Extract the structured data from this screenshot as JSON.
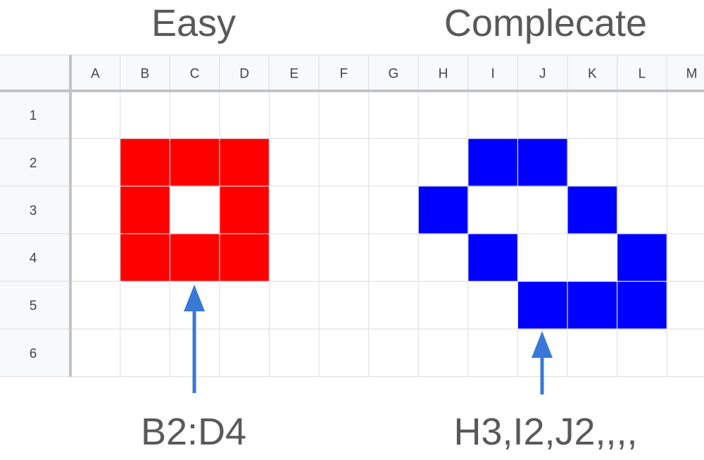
{
  "titles": {
    "left": "Easy",
    "right": "Complecate"
  },
  "captions": {
    "left": "B2:D4",
    "right": "H3,I2,J2,,,,"
  },
  "sheet": {
    "columns": [
      "A",
      "B",
      "C",
      "D",
      "E",
      "F",
      "G",
      "H",
      "I",
      "J",
      "K",
      "L",
      "M"
    ],
    "rows": [
      "1",
      "2",
      "3",
      "4",
      "5",
      "6"
    ]
  },
  "colors": {
    "easy_fill": "#ff0000",
    "complex_fill": "#0000ff",
    "arrow": "#3a78d8",
    "header_bg": "#f8f9fa",
    "grid": "#e2e2e2"
  },
  "shapes": {
    "easy": {
      "range": "B2:D4",
      "cells": [
        "B2",
        "C2",
        "D2",
        "B3",
        "D3",
        "B4",
        "C4",
        "D4"
      ]
    },
    "complex": {
      "cells": [
        "I2",
        "J2",
        "H3",
        "K3",
        "I4",
        "L4",
        "J5",
        "K5",
        "L5"
      ]
    }
  },
  "arrows": [
    {
      "name": "arrow-easy",
      "points_to": "C5"
    },
    {
      "name": "arrow-complex",
      "points_to": "J6"
    }
  ]
}
